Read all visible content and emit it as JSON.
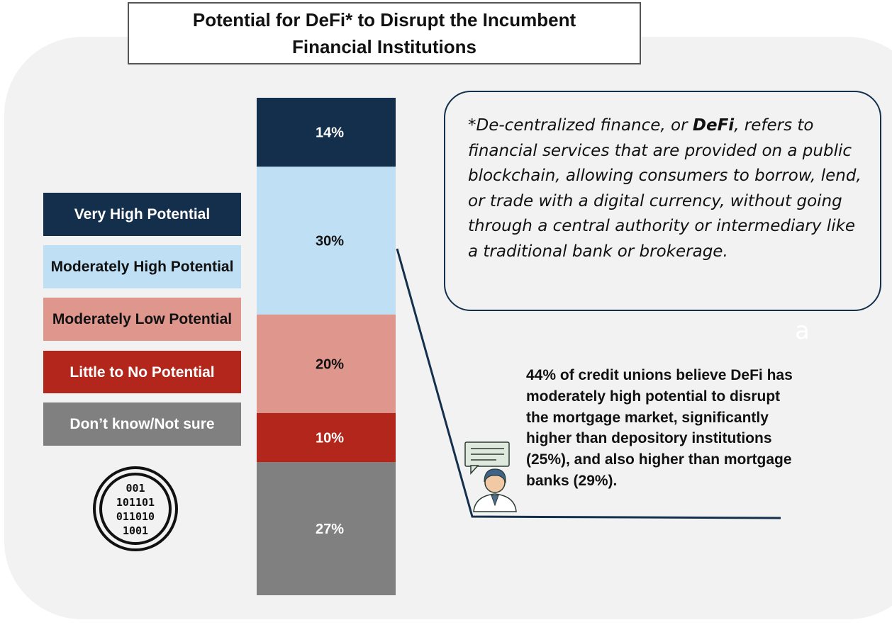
{
  "title": "Potential for DeFi* to Disrupt the Incumbent Financial Institutions",
  "legend": [
    {
      "label": "Very High Potential",
      "color": "#132f4c",
      "text_color": "#ffffff"
    },
    {
      "label": "Moderately High Potential",
      "color": "#bfdff5",
      "text_color": "#111111"
    },
    {
      "label": "Moderately Low Potential",
      "color": "#de968d",
      "text_color": "#111111"
    },
    {
      "label": "Little to No Potential",
      "color": "#b2261b",
      "text_color": "#ffffff"
    },
    {
      "label": "Don’t know/Not sure",
      "color": "#808080",
      "text_color": "#ffffff"
    }
  ],
  "chart_data": {
    "type": "bar",
    "stacked": true,
    "categories": [
      ""
    ],
    "series": [
      {
        "name": "Very High Potential",
        "values": [
          14
        ],
        "label": "14%",
        "color": "#132f4c",
        "label_color": "#ffffff"
      },
      {
        "name": "Moderately High Potential",
        "values": [
          30
        ],
        "label": "30%",
        "color": "#bfdff5",
        "label_color": "#111111"
      },
      {
        "name": "Moderately Low Potential",
        "values": [
          20
        ],
        "label": "20%",
        "color": "#de968d",
        "label_color": "#111111"
      },
      {
        "name": "Little to No Potential",
        "values": [
          10
        ],
        "label": "10%",
        "color": "#b2261b",
        "label_color": "#ffffff"
      },
      {
        "name": "Don’t know/Not sure",
        "values": [
          27
        ],
        "label": "27%",
        "color": "#808080",
        "label_color": "#ffffff"
      }
    ],
    "ylim": [
      0,
      101
    ],
    "legend_position": "left",
    "grid": false
  },
  "definition": {
    "prefix": "*De-centralized finance, or ",
    "term": "DeFi",
    "suffix": ", refers to financial services that are provided on a public blockchain, allowing consumers to borrow, lend, or trade with a digital currency, without going through a central authority or intermediary like a traditional bank or brokerage."
  },
  "stray_letter": "a",
  "callout": "44% of credit unions believe DeFi has moderately high potential to disrupt the mortgage market, significantly higher than depository institutions (25%), and also higher than mortgage banks (29%).",
  "binary_icon": {
    "lines": [
      "001",
      "101101",
      "011010",
      "1001"
    ]
  },
  "icons": [
    "binary-code-icon",
    "person-speech-icon"
  ]
}
